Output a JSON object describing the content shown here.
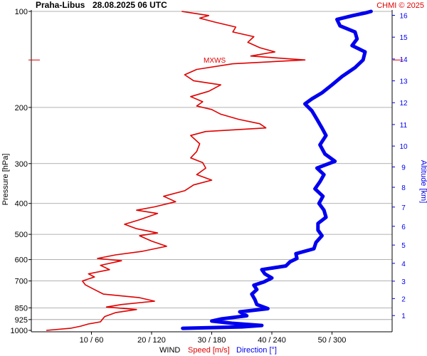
{
  "header": {
    "station": "Praha-Libus",
    "datetime": "28.08.2025 06 UTC",
    "credit": "CHMI © 2025"
  },
  "colors": {
    "speed": "#e00000",
    "direction": "#0000ee",
    "grid": "#999999",
    "axis": "#000000"
  },
  "chart_data": {
    "type": "line",
    "left_axis": {
      "label": "Pressure [hPa]",
      "scale": "log",
      "range": [
        100,
        1000
      ],
      "ticks": [
        100,
        200,
        300,
        400,
        500,
        600,
        700,
        850,
        925,
        1000
      ]
    },
    "right_axis": {
      "label": "Altitude [km]",
      "ticks": [
        1,
        2,
        3,
        4,
        5,
        6,
        7,
        8,
        9,
        10,
        11,
        12,
        13,
        14,
        15,
        16
      ]
    },
    "x_axis": {
      "label_prefix": "WIND",
      "label_speed": "Speed [m/s]",
      "label_direction": "Direction [°]",
      "ticks": [
        {
          "speed": 10,
          "direction": 60,
          "label": "10 / 60"
        },
        {
          "speed": 20,
          "direction": 120,
          "label": "20 / 120"
        },
        {
          "speed": 30,
          "direction": 180,
          "label": "30 / 180"
        },
        {
          "speed": 40,
          "direction": 240,
          "label": "40 / 240"
        },
        {
          "speed": 50,
          "direction": 300,
          "label": "50 / 300"
        }
      ],
      "speed_range": [
        0,
        60
      ],
      "direction_range": [
        0,
        360
      ]
    },
    "annotation": {
      "text": "MXWS",
      "pressure": 142
    },
    "series": [
      {
        "name": "Speed [m/s]",
        "unit": "m/s",
        "points": [
          [
            1000,
            2.5
          ],
          [
            985,
            6.5
          ],
          [
            970,
            8.2
          ],
          [
            955,
            9.5
          ],
          [
            940,
            11.5
          ],
          [
            925,
            11.8
          ],
          [
            905,
            12.2
          ],
          [
            880,
            14.0
          ],
          [
            860,
            17.5
          ],
          [
            845,
            12.5
          ],
          [
            830,
            15.0
          ],
          [
            810,
            20.5
          ],
          [
            790,
            18.0
          ],
          [
            770,
            12.0
          ],
          [
            745,
            10.5
          ],
          [
            720,
            9.0
          ],
          [
            700,
            8.5
          ],
          [
            680,
            10.5
          ],
          [
            665,
            9.5
          ],
          [
            645,
            13.0
          ],
          [
            625,
            11.5
          ],
          [
            605,
            15.0
          ],
          [
            595,
            11.0
          ],
          [
            580,
            14.0
          ],
          [
            565,
            18.5
          ],
          [
            545,
            22.5
          ],
          [
            525,
            20.0
          ],
          [
            505,
            18.0
          ],
          [
            495,
            21.0
          ],
          [
            480,
            17.5
          ],
          [
            465,
            15.5
          ],
          [
            450,
            18.0
          ],
          [
            430,
            21.0
          ],
          [
            420,
            17.5
          ],
          [
            410,
            20.5
          ],
          [
            395,
            24.0
          ],
          [
            380,
            22.0
          ],
          [
            365,
            25.5
          ],
          [
            350,
            27.0
          ],
          [
            338,
            30.0
          ],
          [
            325,
            27.5
          ],
          [
            310,
            29.0
          ],
          [
            298,
            28.5
          ],
          [
            288,
            26.5
          ],
          [
            275,
            27.5
          ],
          [
            260,
            28.0
          ],
          [
            245,
            26.5
          ],
          [
            238,
            29.0
          ],
          [
            232,
            39.0
          ],
          [
            225,
            38.0
          ],
          [
            218,
            34.5
          ],
          [
            210,
            31.5
          ],
          [
            203,
            30.0
          ],
          [
            198,
            27.5
          ],
          [
            192,
            28.5
          ],
          [
            185,
            26.5
          ],
          [
            178,
            29.5
          ],
          [
            170,
            31.5
          ],
          [
            165,
            27.0
          ],
          [
            158,
            25.5
          ],
          [
            152,
            27.5
          ],
          [
            146,
            33.5
          ],
          [
            142,
            45.5
          ],
          [
            138,
            36.5
          ],
          [
            134,
            40.5
          ],
          [
            130,
            38.0
          ],
          [
            125,
            36.0
          ],
          [
            120,
            37.0
          ],
          [
            116,
            33.5
          ],
          [
            112,
            34.0
          ],
          [
            108,
            30.5
          ],
          [
            105,
            28.0
          ],
          [
            103,
            29.5
          ],
          [
            101,
            26.5
          ],
          [
            100,
            25.0
          ]
        ]
      },
      {
        "name": "Direction [°]",
        "unit": "°",
        "points": [
          [
            985,
            151
          ],
          [
            975,
            210
          ],
          [
            965,
            230
          ],
          [
            950,
            200
          ],
          [
            935,
            180
          ],
          [
            920,
            190
          ],
          [
            900,
            215
          ],
          [
            875,
            208
          ],
          [
            855,
            236
          ],
          [
            830,
            225
          ],
          [
            800,
            223
          ],
          [
            770,
            220
          ],
          [
            745,
            225
          ],
          [
            722,
            222
          ],
          [
            705,
            232
          ],
          [
            685,
            240
          ],
          [
            665,
            233
          ],
          [
            645,
            230
          ],
          [
            628,
            254
          ],
          [
            610,
            258
          ],
          [
            595,
            265
          ],
          [
            575,
            264
          ],
          [
            555,
            282
          ],
          [
            530,
            284
          ],
          [
            505,
            290
          ],
          [
            485,
            286
          ],
          [
            462,
            286
          ],
          [
            442,
            294
          ],
          [
            420,
            292
          ],
          [
            400,
            287
          ],
          [
            380,
            291
          ],
          [
            360,
            283
          ],
          [
            342,
            288
          ],
          [
            325,
            292
          ],
          [
            310,
            285
          ],
          [
            295,
            303
          ],
          [
            280,
            293
          ],
          [
            262,
            288
          ],
          [
            245,
            294
          ],
          [
            232,
            290
          ],
          [
            218,
            285
          ],
          [
            205,
            280
          ],
          [
            195,
            273
          ],
          [
            188,
            280
          ],
          [
            180,
            290
          ],
          [
            170,
            300
          ],
          [
            160,
            310
          ],
          [
            150,
            323
          ],
          [
            142,
            331
          ],
          [
            134,
            333
          ],
          [
            128,
            320
          ],
          [
            122,
            325
          ],
          [
            116,
            323
          ],
          [
            111,
            308
          ],
          [
            106,
            305
          ],
          [
            103,
            321
          ],
          [
            101,
            334
          ],
          [
            100,
            339
          ]
        ]
      }
    ],
    "grid": true,
    "legend": "none"
  }
}
